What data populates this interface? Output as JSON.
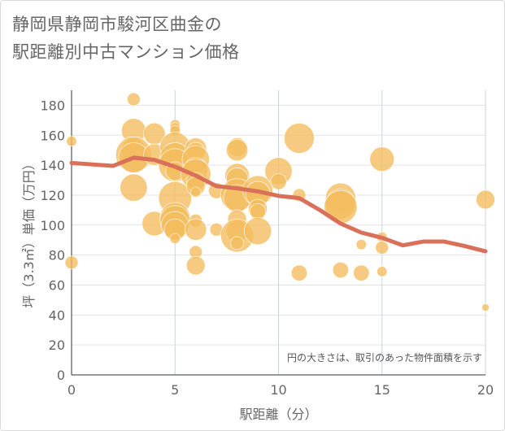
{
  "title_line1": "静岡県静岡市駿河区曲金の",
  "title_line2": "駅距離別中古マンション価格",
  "chart_data": {
    "type": "scatter",
    "title": "静岡県静岡市駿河区曲金の駅距離別中古マンション価格",
    "xlabel": "駅距離（分）",
    "ylabel": "坪（3.3㎡）単価（万円）",
    "xlim": [
      0,
      20
    ],
    "ylim": [
      0,
      190
    ],
    "xticks": [
      0,
      5,
      10,
      15,
      20
    ],
    "yticks": [
      0,
      20,
      40,
      60,
      80,
      100,
      120,
      140,
      160,
      180
    ],
    "note": "円の大きさは、取引のあった物件面積を示す",
    "bubble_color": "#f3bc5e",
    "line_color": "#d9705a",
    "bubbles": [
      {
        "x": 0,
        "y": 156,
        "s": 3
      },
      {
        "x": 0,
        "y": 75,
        "s": 4
      },
      {
        "x": 3,
        "y": 184,
        "s": 4
      },
      {
        "x": 3,
        "y": 163,
        "s": 8
      },
      {
        "x": 3,
        "y": 150,
        "s": 8
      },
      {
        "x": 3,
        "y": 147,
        "s": 12
      },
      {
        "x": 3,
        "y": 145,
        "s": 10
      },
      {
        "x": 3,
        "y": 125,
        "s": 9
      },
      {
        "x": 4,
        "y": 161,
        "s": 7
      },
      {
        "x": 4,
        "y": 147,
        "s": 7
      },
      {
        "x": 4,
        "y": 101,
        "s": 8
      },
      {
        "x": 5,
        "y": 167,
        "s": 3
      },
      {
        "x": 5,
        "y": 165,
        "s": 3
      },
      {
        "x": 5,
        "y": 163,
        "s": 3
      },
      {
        "x": 5,
        "y": 152,
        "s": 10
      },
      {
        "x": 5,
        "y": 145,
        "s": 10
      },
      {
        "x": 5,
        "y": 140,
        "s": 11
      },
      {
        "x": 5,
        "y": 136,
        "s": 6
      },
      {
        "x": 5,
        "y": 118,
        "s": 11
      },
      {
        "x": 5,
        "y": 105,
        "s": 10
      },
      {
        "x": 5,
        "y": 103,
        "s": 10
      },
      {
        "x": 5,
        "y": 100,
        "s": 9
      },
      {
        "x": 5,
        "y": 97,
        "s": 7
      },
      {
        "x": 5,
        "y": 91,
        "s": 3
      },
      {
        "x": 6,
        "y": 151,
        "s": 7
      },
      {
        "x": 6,
        "y": 149,
        "s": 6
      },
      {
        "x": 6,
        "y": 144,
        "s": 9
      },
      {
        "x": 6,
        "y": 137,
        "s": 8
      },
      {
        "x": 6,
        "y": 134,
        "s": 10
      },
      {
        "x": 6,
        "y": 129,
        "s": 6
      },
      {
        "x": 6,
        "y": 126,
        "s": 6
      },
      {
        "x": 6,
        "y": 122,
        "s": 3
      },
      {
        "x": 6,
        "y": 103,
        "s": 4
      },
      {
        "x": 6,
        "y": 97,
        "s": 7
      },
      {
        "x": 6,
        "y": 82,
        "s": 4
      },
      {
        "x": 6,
        "y": 73,
        "s": 6
      },
      {
        "x": 7,
        "y": 123,
        "s": 5
      },
      {
        "x": 7,
        "y": 97,
        "s": 4
      },
      {
        "x": 8,
        "y": 152,
        "s": 6
      },
      {
        "x": 8,
        "y": 150,
        "s": 7
      },
      {
        "x": 8,
        "y": 133,
        "s": 8
      },
      {
        "x": 8,
        "y": 131,
        "s": 7
      },
      {
        "x": 8,
        "y": 120,
        "s": 11
      },
      {
        "x": 8,
        "y": 118,
        "s": 9
      },
      {
        "x": 8,
        "y": 104,
        "s": 6
      },
      {
        "x": 8,
        "y": 96,
        "s": 7
      },
      {
        "x": 8,
        "y": 93,
        "s": 11
      },
      {
        "x": 8,
        "y": 88,
        "s": 4
      },
      {
        "x": 9,
        "y": 123,
        "s": 10
      },
      {
        "x": 9,
        "y": 121,
        "s": 8
      },
      {
        "x": 9,
        "y": 111,
        "s": 6
      },
      {
        "x": 9,
        "y": 109,
        "s": 5
      },
      {
        "x": 9,
        "y": 96,
        "s": 9
      },
      {
        "x": 10,
        "y": 136,
        "s": 9
      },
      {
        "x": 10,
        "y": 129,
        "s": 5
      },
      {
        "x": 11,
        "y": 158,
        "s": 10
      },
      {
        "x": 11,
        "y": 120,
        "s": 4
      },
      {
        "x": 11,
        "y": 68,
        "s": 5
      },
      {
        "x": 13,
        "y": 118,
        "s": 10
      },
      {
        "x": 13,
        "y": 114,
        "s": 10
      },
      {
        "x": 13,
        "y": 112,
        "s": 11
      },
      {
        "x": 13,
        "y": 70,
        "s": 5
      },
      {
        "x": 14,
        "y": 87,
        "s": 3
      },
      {
        "x": 14,
        "y": 68,
        "s": 5
      },
      {
        "x": 15,
        "y": 144,
        "s": 8
      },
      {
        "x": 15,
        "y": 92,
        "s": 3
      },
      {
        "x": 15,
        "y": 85,
        "s": 4
      },
      {
        "x": 15,
        "y": 69,
        "s": 3
      },
      {
        "x": 20,
        "y": 117,
        "s": 6
      },
      {
        "x": 20,
        "y": 45,
        "s": 2
      }
    ],
    "trend": {
      "x": [
        0,
        1,
        2,
        3,
        4,
        5,
        6,
        7,
        8,
        9,
        10,
        11,
        12,
        13,
        14,
        15,
        16,
        17,
        18,
        19,
        20
      ],
      "y": [
        141.5,
        140.5,
        139.5,
        145,
        143.5,
        139,
        133,
        126,
        124.5,
        122.5,
        119.5,
        118,
        110,
        101,
        95,
        91.5,
        86.5,
        89,
        89,
        86,
        82.5
      ]
    }
  }
}
